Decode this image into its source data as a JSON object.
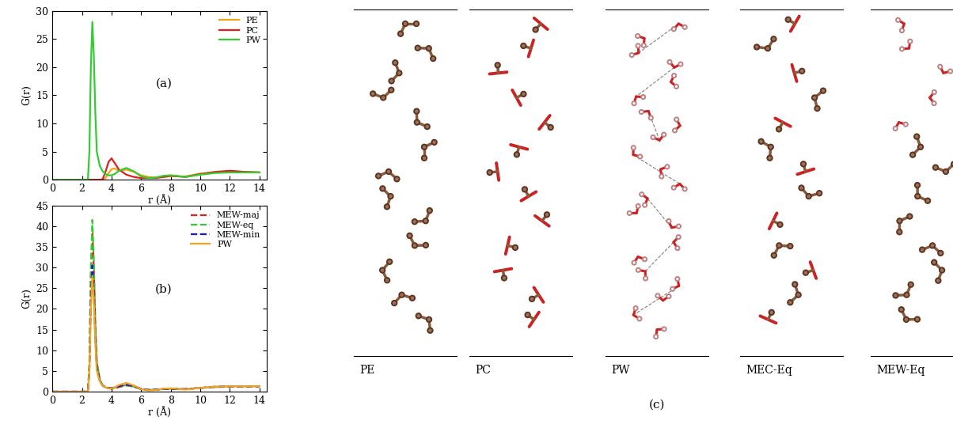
{
  "chart_data": [
    {
      "type": "line",
      "annotations": [
        "(a)"
      ],
      "x_label": "r (Å)",
      "y_label": "G(r)",
      "x": [
        0,
        2.4,
        2.5,
        2.6,
        2.7,
        2.8,
        2.9,
        3.0,
        3.2,
        3.4,
        3.6,
        3.8,
        4.0,
        4.2,
        4.5,
        5.0,
        5.5,
        6.0,
        6.5,
        7.0,
        7.5,
        8.0,
        9.0,
        10.0,
        11.0,
        12.0,
        13.0,
        14.0
      ],
      "series": [
        {
          "name": "PE",
          "color": "#f5a31a",
          "line_style": "solid",
          "values": [
            0,
            0,
            0,
            0,
            0,
            0,
            0,
            0,
            0,
            0,
            0.3,
            1.2,
            1.9,
            2.0,
            1.6,
            1.8,
            1.4,
            0.8,
            0.5,
            0.4,
            0.5,
            0.6,
            0.6,
            1.1,
            1.3,
            1.5,
            1.4,
            1.3
          ]
        },
        {
          "name": "PC",
          "color": "#e01e1e",
          "line_style": "solid",
          "values": [
            0,
            0,
            0,
            0,
            0,
            0,
            0,
            0,
            0,
            0.1,
            1.5,
            3.2,
            3.8,
            3.0,
            1.8,
            0.9,
            0.5,
            0.3,
            0.3,
            0.3,
            0.5,
            0.7,
            0.5,
            1.0,
            1.4,
            1.6,
            1.4,
            1.3
          ]
        },
        {
          "name": "PW",
          "color": "#33cc33",
          "line_style": "solid",
          "values": [
            0,
            0,
            5,
            20,
            28,
            22,
            12,
            5,
            2.5,
            1.5,
            1.0,
            0.8,
            0.8,
            1.0,
            1.6,
            2.1,
            1.5,
            0.6,
            0.3,
            0.4,
            0.7,
            0.8,
            0.5,
            0.9,
            1.2,
            1.3,
            1.3,
            1.3
          ]
        }
      ],
      "xlim": [
        0,
        14.5
      ],
      "xticks": [
        0,
        2,
        4,
        6,
        8,
        10,
        12,
        14
      ],
      "ylim": [
        0,
        30
      ],
      "yticks": [
        0,
        5,
        10,
        15,
        20,
        25,
        30
      ],
      "legend": "upper right",
      "grid": false
    },
    {
      "type": "line",
      "annotations": [
        "(b)"
      ],
      "x_label": "r (Å)",
      "y_label": "G(r)",
      "x": [
        0,
        2.4,
        2.5,
        2.6,
        2.7,
        2.8,
        2.9,
        3.0,
        3.2,
        3.4,
        3.6,
        3.8,
        4.0,
        4.2,
        4.5,
        5.0,
        5.5,
        6.0,
        6.5,
        7.0,
        7.5,
        8.0,
        9.0,
        10.0,
        11.0,
        12.0,
        13.0,
        14.0
      ],
      "series": [
        {
          "name": "MEW-maj",
          "color": "#e01e1e",
          "line_style": "dashed",
          "values": [
            0,
            0,
            6,
            28,
            38.5,
            30,
            16,
            7,
            3,
            1.5,
            1.0,
            0.8,
            0.7,
            0.8,
            1.1,
            1.5,
            1.2,
            0.6,
            0.4,
            0.5,
            0.6,
            0.6,
            0.6,
            0.9,
            1.1,
            1.2,
            1.2,
            1.2
          ]
        },
        {
          "name": "MEW-eq",
          "color": "#33cc33",
          "line_style": "dashed",
          "values": [
            0,
            0,
            7,
            30,
            41.5,
            32,
            17,
            7.5,
            3,
            1.5,
            1.0,
            0.8,
            0.8,
            0.9,
            1.2,
            1.6,
            1.2,
            0.6,
            0.4,
            0.5,
            0.6,
            0.7,
            0.6,
            0.9,
            1.1,
            1.3,
            1.3,
            1.3
          ]
        },
        {
          "name": "MEW-min",
          "color": "#1a1acc",
          "line_style": "dashed",
          "values": [
            0,
            0,
            5,
            22,
            30.5,
            24,
            13,
            6,
            2.5,
            1.5,
            1.0,
            0.9,
            0.9,
            1.0,
            1.3,
            1.7,
            1.3,
            0.7,
            0.4,
            0.5,
            0.6,
            0.7,
            0.6,
            0.9,
            1.2,
            1.3,
            1.3,
            1.3
          ]
        },
        {
          "name": "PW",
          "color": "#f5a31a",
          "line_style": "solid",
          "values": [
            0,
            0,
            5,
            20,
            28,
            22,
            12,
            5,
            2.5,
            1.5,
            1.0,
            0.8,
            0.8,
            1.0,
            1.6,
            2.1,
            1.5,
            0.6,
            0.3,
            0.4,
            0.7,
            0.8,
            0.5,
            0.9,
            1.2,
            1.3,
            1.3,
            1.3
          ]
        }
      ],
      "xlim": [
        0,
        14.5
      ],
      "xticks": [
        0,
        2,
        4,
        6,
        8,
        10,
        12,
        14
      ],
      "ylim": [
        0,
        45
      ],
      "yticks": [
        0,
        5,
        10,
        15,
        20,
        25,
        30,
        35,
        40,
        45
      ],
      "legend": "upper right",
      "grid": false
    }
  ],
  "snapshots": {
    "label": "(c)",
    "panels": [
      "PE",
      "PC",
      "PW",
      "MEC-Eq",
      "MEW-Eq"
    ]
  }
}
